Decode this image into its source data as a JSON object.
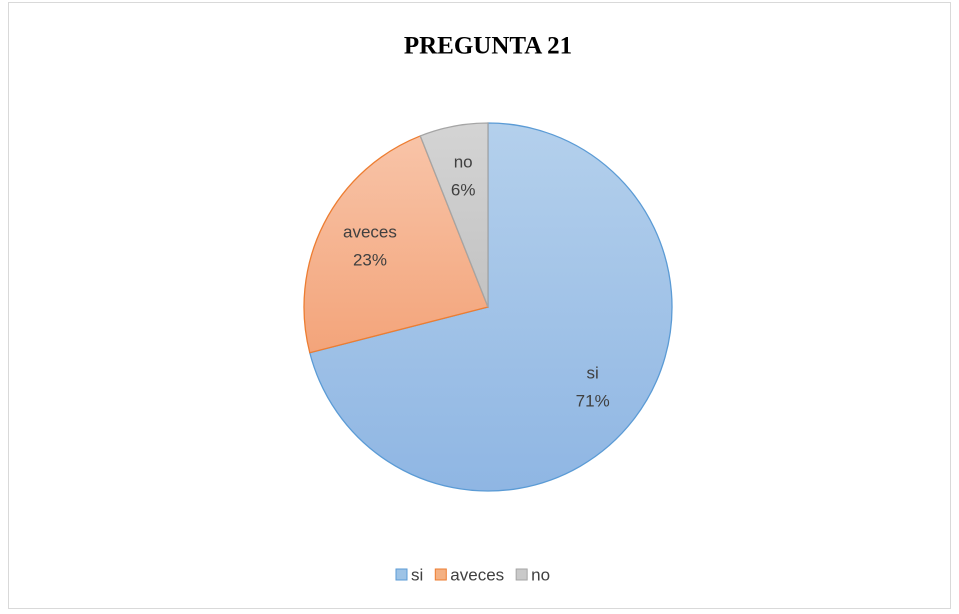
{
  "chart_data": {
    "type": "pie",
    "title": "PREGUNTA 21",
    "categories": [
      "si",
      "aveces",
      "no"
    ],
    "values": [
      71,
      23,
      6
    ],
    "value_labels": [
      "71%",
      "23%",
      "6%"
    ],
    "colors": [
      "#9dc3e6",
      "#f4b183",
      "#c9c9c9"
    ],
    "legend": "bottom"
  }
}
